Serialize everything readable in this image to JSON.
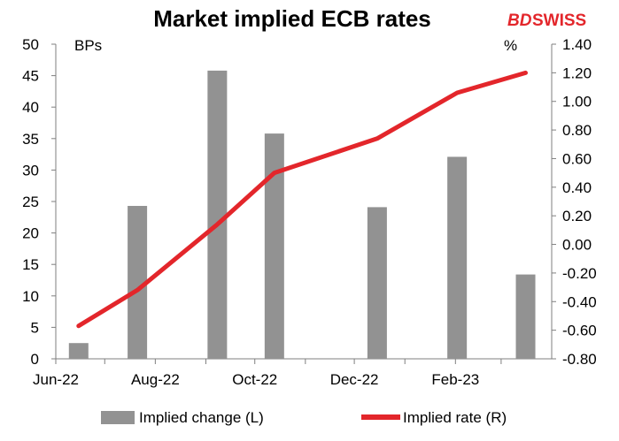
{
  "brand": {
    "logo_left": "BD",
    "logo_right": "SWISS"
  },
  "colors": {
    "bars": "#929292",
    "line": "#e3262b",
    "axis": "#7f7f7f"
  },
  "chart_data": {
    "type": "bar+line",
    "title": "Market implied ECB rates",
    "y_left_label": "BPs",
    "y_right_label": "%",
    "y_left_lim": [
      0,
      50
    ],
    "y_left_ticks": [
      "0",
      "5",
      "10",
      "15",
      "20",
      "25",
      "30",
      "35",
      "40",
      "45",
      "50"
    ],
    "y_right_lim": [
      -0.8,
      1.4
    ],
    "y_right_ticks": [
      "-0.80",
      "-0.60",
      "-0.40",
      "-0.20",
      "0.00",
      "0.20",
      "0.40",
      "0.60",
      "0.80",
      "1.00",
      "1.20",
      "1.40"
    ],
    "x_tick_labels": [
      "Jun-22",
      "Aug-22",
      "Oct-22",
      "Dec-22",
      "Feb-23"
    ],
    "grid": false,
    "legend_position": "bottom",
    "series": [
      {
        "name": "Implied change (L)",
        "type": "bar",
        "axis": "left",
        "points": [
          {
            "x": "2022-06-15",
            "y": 2.5
          },
          {
            "x": "2022-07-21",
            "y": 24.3
          },
          {
            "x": "2022-09-08",
            "y": 45.8
          },
          {
            "x": "2022-10-13",
            "y": 35.8
          },
          {
            "x": "2022-12-15",
            "y": 24.1
          },
          {
            "x": "2023-02-02",
            "y": 32.1
          },
          {
            "x": "2023-03-16",
            "y": 13.4
          }
        ]
      },
      {
        "name": "Implied rate (R)",
        "type": "line",
        "axis": "right",
        "points": [
          {
            "x": "2022-06-15",
            "y": -0.57
          },
          {
            "x": "2022-07-21",
            "y": -0.32
          },
          {
            "x": "2022-09-08",
            "y": 0.14
          },
          {
            "x": "2022-10-13",
            "y": 0.5
          },
          {
            "x": "2022-12-15",
            "y": 0.74
          },
          {
            "x": "2023-02-02",
            "y": 1.06
          },
          {
            "x": "2023-03-16",
            "y": 1.2
          }
        ]
      }
    ]
  }
}
